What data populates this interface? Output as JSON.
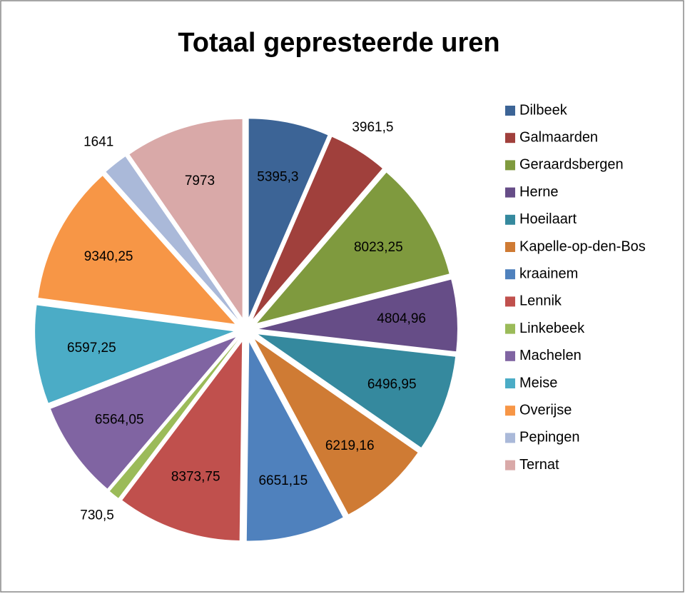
{
  "chart_data": {
    "type": "pie",
    "title": "Totaal gepresteerde  uren",
    "categories": [
      "Dilbeek",
      "Galmaarden",
      "Geraardsbergen",
      "Herne",
      "Hoeilaart",
      "Kapelle-op-den-Bos",
      "kraainem",
      "Lennik",
      "Linkebeek",
      "Machelen",
      "Meise",
      "Overijse",
      "Pepingen",
      "Ternat"
    ],
    "values": [
      5395.3,
      3961.5,
      8023.25,
      4804.96,
      6496.95,
      6219.16,
      6651.15,
      8373.75,
      730.5,
      6564.05,
      6597.25,
      9340.25,
      1641,
      7973
    ],
    "value_labels": [
      "5395,3",
      "3961,5",
      "8023,25",
      "4804,96",
      "6496,95",
      "6219,16",
      "6651,15",
      "8373,75",
      "730,5",
      "6564,05",
      "6597,25",
      "9340,25",
      "1641",
      "7973"
    ],
    "colors": [
      "#3c6496",
      "#a0403c",
      "#7f9a3e",
      "#664d87",
      "#35899e",
      "#cf7b34",
      "#4f81bd",
      "#c0504d",
      "#9bbb59",
      "#8064a2",
      "#4bacc6",
      "#f79646",
      "#aab9d9",
      "#d9a9a8"
    ],
    "legend": "right"
  }
}
